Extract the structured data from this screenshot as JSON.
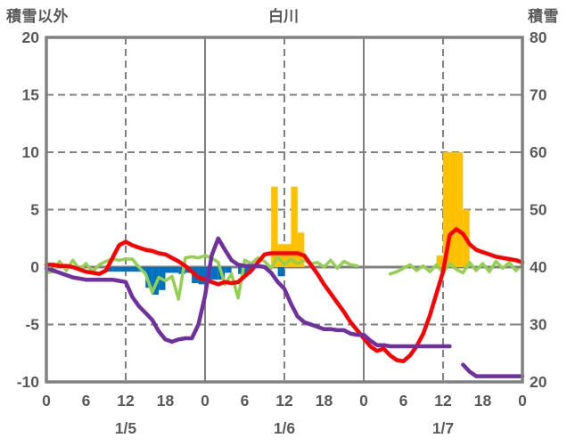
{
  "chart": {
    "title": "白川",
    "left_axis_title": "積雪以外",
    "right_axis_title": "積雪"
  },
  "chart_data": {
    "type": "combo-bar-line-dual-axis",
    "title": "白川",
    "x_unit": "hour",
    "x_range_hours": [
      0,
      72
    ],
    "x_tick_hours": [
      0,
      6,
      12,
      18,
      24,
      30,
      36,
      42,
      48,
      54,
      60,
      66,
      72
    ],
    "x_tick_labels": [
      "0",
      "6",
      "12",
      "18",
      "0",
      "6",
      "12",
      "18",
      "0",
      "6",
      "12",
      "18",
      "0"
    ],
    "date_labels": [
      {
        "text": "1/5",
        "hour": 12
      },
      {
        "text": "1/6",
        "hour": 36
      },
      {
        "text": "1/7",
        "hour": 60
      }
    ],
    "left_axis": {
      "title": "積雪以外",
      "min": -10,
      "max": 20,
      "ticks": [
        20,
        15,
        10,
        5,
        0,
        -5,
        -10
      ]
    },
    "right_axis": {
      "title": "積雪",
      "min": 20,
      "max": 80,
      "ticks": [
        80,
        70,
        60,
        50,
        40,
        30,
        20
      ]
    },
    "gridlines": {
      "horizontal_dashed_left_values": [
        15,
        10,
        5,
        -5
      ],
      "horizontal_solid_left_values": [
        0
      ],
      "vertical_dashed_hours": [
        12,
        36,
        60
      ],
      "vertical_solid_hours": [
        24,
        48
      ],
      "grid_color": "#808080"
    },
    "style": {
      "frame_color": "#808080",
      "text_color": "#595959",
      "background": "#ffffff",
      "red": "#ff0000",
      "green": "#92d050",
      "purple": "#7030a0",
      "blue": "#0070c0",
      "gold": "#ffc000"
    },
    "series": [
      {
        "name": "blue-bars",
        "type": "bar",
        "axis": "left",
        "color": "#0070c0",
        "points": [
          [
            9,
            -0.4
          ],
          [
            10,
            -0.4
          ],
          [
            11,
            -0.4
          ],
          [
            12,
            -0.4
          ],
          [
            13,
            -0.4
          ],
          [
            14,
            -0.4
          ],
          [
            15,
            -1.8
          ],
          [
            16,
            -2.4
          ],
          [
            17,
            -2.0
          ],
          [
            18,
            -0.5
          ],
          [
            19,
            -0.5
          ],
          [
            20,
            -0.6
          ],
          [
            21,
            -0.5
          ],
          [
            22,
            -1.4
          ],
          [
            23,
            -1.5
          ],
          [
            24,
            -1.4
          ],
          [
            25,
            -1.1
          ],
          [
            26,
            -1.1
          ],
          [
            27,
            -0.5
          ],
          [
            29,
            -0.6
          ],
          [
            30,
            -0.6
          ],
          [
            35,
            -0.8
          ]
        ]
      },
      {
        "name": "gold-bars",
        "type": "bar",
        "axis": "left",
        "color": "#ffc000",
        "points": [
          [
            34,
            7
          ],
          [
            35,
            2
          ],
          [
            36,
            2
          ],
          [
            37,
            7
          ],
          [
            38,
            3
          ],
          [
            59,
            1
          ],
          [
            60,
            10
          ],
          [
            61,
            10
          ],
          [
            62,
            10
          ],
          [
            63,
            5
          ]
        ]
      },
      {
        "name": "green-line",
        "type": "line",
        "axis": "left",
        "color": "#92d050",
        "width": 3.5,
        "hourly": [
          -0.5,
          -0.4,
          0.5,
          -0.3,
          0.6,
          -0.2,
          0.3,
          -0.4,
          0.2,
          0.5,
          0.7,
          0.6,
          0.7,
          0.7,
          0,
          -0.6,
          -2.2,
          -0.9,
          -1.2,
          -0.8,
          -2.8,
          0.8,
          0.9,
          0.8,
          1.0,
          0.8,
          0.4,
          -1.5,
          -0.6,
          -2.7,
          0.6,
          0.3,
          0.8,
          0.5,
          -0.1,
          0.9,
          0.2,
          0.7,
          0.3,
          0.6,
          0.3,
          0.4,
          0,
          0.6,
          -0.1,
          0.5,
          0.2,
          0.1,
          null,
          null,
          null,
          null,
          -0.6,
          -0.4,
          -0.1,
          0.2,
          -0.3,
          0.1,
          -0.4,
          0.2,
          -0.5,
          0.3,
          -0.2,
          -0.5,
          0.4,
          -0.3,
          0.3,
          -0.4,
          0.5,
          -0.1,
          0.4,
          -0.3,
          0.2
        ]
      },
      {
        "name": "red-line",
        "type": "line",
        "axis": "left",
        "color": "#ff0000",
        "width": 4.5,
        "hourly": [
          0.2,
          0.2,
          0.1,
          0.1,
          0,
          -0.2,
          -0.4,
          -0.5,
          -0.6,
          -0.3,
          0.8,
          1.9,
          2.2,
          1.9,
          1.7,
          1.5,
          1.4,
          1.2,
          1.1,
          0.8,
          0.5,
          0.1,
          -0.4,
          -0.9,
          -1.1,
          -1.3,
          -1.5,
          -1.3,
          -1.4,
          -1.3,
          -0.8,
          -0.3,
          0.4,
          1.1,
          1.2,
          1.2,
          1.2,
          1.2,
          1.2,
          1.0,
          0.2,
          -0.6,
          -1.5,
          -2.3,
          -3.1,
          -3.9,
          -4.8,
          -5.5,
          -6.2,
          -6.9,
          -7.3,
          -7.1,
          -7.7,
          -8.1,
          -8.2,
          -7.7,
          -6.9,
          -5.8,
          -4.2,
          -2.3,
          -0.4,
          2.8,
          3.3,
          2.9,
          2.0,
          1.5,
          1.3,
          1.1,
          0.9,
          0.8,
          0.7,
          0.6,
          0.4
        ]
      },
      {
        "name": "purple-line",
        "type": "line",
        "axis": "right",
        "color": "#7030a0",
        "width": 4.5,
        "hourly": [
          39.8,
          39.4,
          39,
          38.6,
          38.2,
          38,
          37.8,
          37.8,
          37.8,
          37.8,
          37.8,
          37.6,
          37.4,
          34.8,
          33.2,
          32,
          30.8,
          28.8,
          27.4,
          27,
          27.4,
          27.6,
          27.6,
          30,
          35,
          42,
          45,
          43,
          41.2,
          40.4,
          40.2,
          40.2,
          40.2,
          40,
          39,
          37.4,
          36.2,
          33.6,
          31.4,
          30.4,
          30,
          29.6,
          29.2,
          29.2,
          29,
          29,
          28.4,
          28.2,
          28.2,
          27.2,
          26.4,
          26.4,
          26.2,
          26.2,
          26.2,
          26.2,
          26.2,
          26.2,
          26.2,
          26.2,
          26.2,
          26.2,
          null,
          23,
          21.8,
          21,
          21,
          21,
          21,
          21,
          21,
          21,
          21
        ]
      }
    ]
  }
}
